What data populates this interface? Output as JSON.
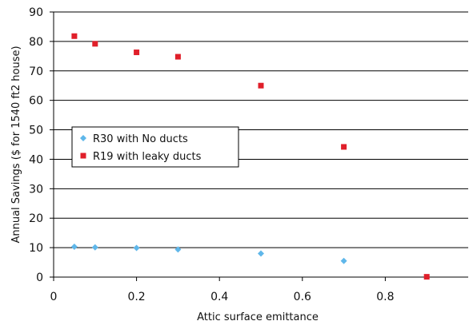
{
  "chart_data": {
    "type": "scatter",
    "title": "",
    "xlabel": "Attic surface emittance",
    "ylabel": "Annual Savings ($ for 1540 ft2 house)",
    "xlim": [
      0,
      1
    ],
    "ylim": [
      0,
      90
    ],
    "x_ticks": [
      0,
      0.2,
      0.4,
      0.6,
      0.8
    ],
    "x_tick_labels": [
      "0",
      "0.2",
      "0.4",
      "0.6",
      "0.8"
    ],
    "y_ticks": [
      0,
      10,
      20,
      30,
      40,
      50,
      60,
      70,
      80,
      90
    ],
    "y_tick_labels": [
      "0",
      "10",
      "20",
      "30",
      "40",
      "50",
      "60",
      "70",
      "80",
      "90"
    ],
    "grid": "horizontal",
    "legend_position": "left-middle",
    "series": [
      {
        "name": "R30 with No ducts",
        "marker": "diamond",
        "color": "#5fb7ea",
        "points": [
          {
            "x": 0.05,
            "y": 10.3
          },
          {
            "x": 0.1,
            "y": 10.1
          },
          {
            "x": 0.2,
            "y": 9.9
          },
          {
            "x": 0.3,
            "y": 9.4
          },
          {
            "x": 0.5,
            "y": 8.0
          },
          {
            "x": 0.7,
            "y": 5.5
          }
        ]
      },
      {
        "name": "R19 with leaky ducts",
        "marker": "square",
        "color": "#e01f2a",
        "points": [
          {
            "x": 0.05,
            "y": 81.8
          },
          {
            "x": 0.1,
            "y": 79.2
          },
          {
            "x": 0.2,
            "y": 76.3
          },
          {
            "x": 0.3,
            "y": 74.8
          },
          {
            "x": 0.5,
            "y": 65.0
          },
          {
            "x": 0.7,
            "y": 44.2
          },
          {
            "x": 0.9,
            "y": 0.1
          }
        ]
      }
    ]
  }
}
